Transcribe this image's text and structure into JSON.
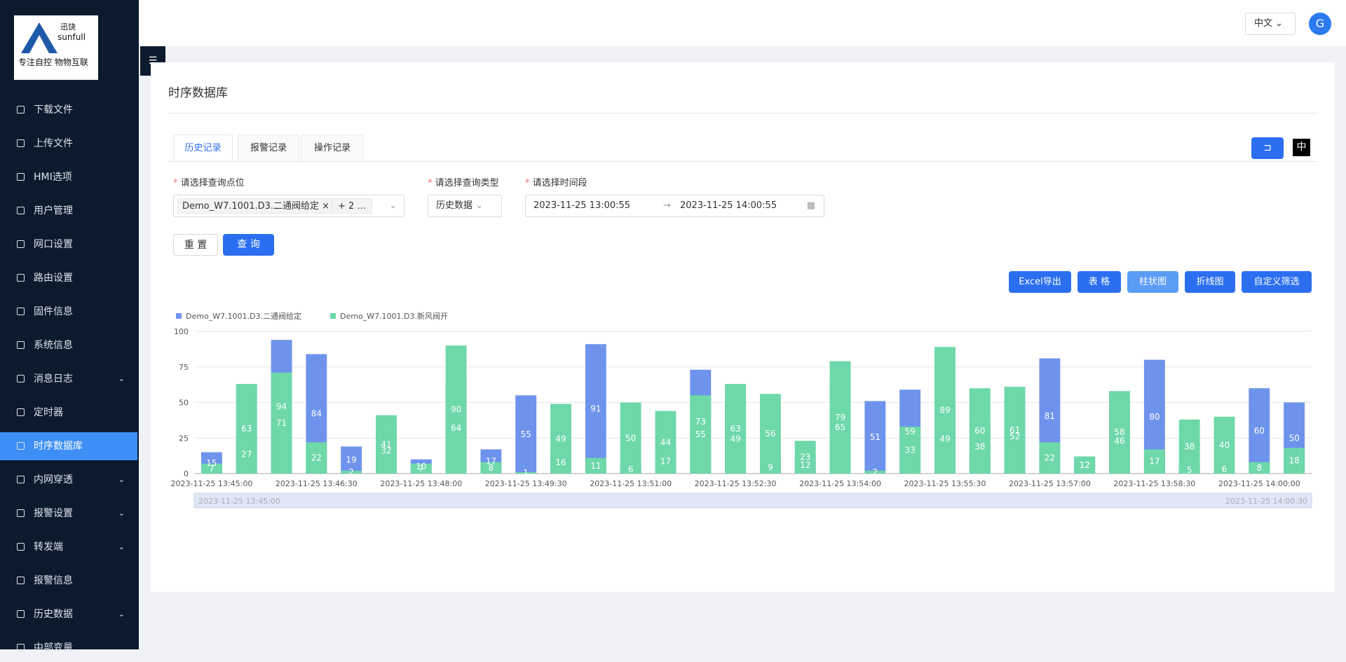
{
  "logo": {
    "brand_cn": "迅饶",
    "brand_en": "sunfull",
    "slogan": "专注自控 物物互联"
  },
  "sidebar": {
    "items": [
      {
        "label": "下载文件"
      },
      {
        "label": "上传文件"
      },
      {
        "label": "HMI选项"
      },
      {
        "label": "用户管理"
      },
      {
        "label": "网口设置"
      },
      {
        "label": "路由设置"
      },
      {
        "label": "固件信息"
      },
      {
        "label": "系统信息"
      },
      {
        "label": "消息日志",
        "expandable": true
      },
      {
        "label": "定时器"
      },
      {
        "label": "时序数据库",
        "active": true
      },
      {
        "label": "内网穿透",
        "expandable": true
      },
      {
        "label": "报警设置",
        "expandable": true
      },
      {
        "label": "转发端",
        "expandable": true
      },
      {
        "label": "报警信息"
      },
      {
        "label": "历史数据",
        "expandable": true
      },
      {
        "label": "中部变量"
      }
    ]
  },
  "header": {
    "language": "中文"
  },
  "page": {
    "title": "时序数据库",
    "tabs": [
      {
        "label": "历史记录",
        "active": true
      },
      {
        "label": "报警记录"
      },
      {
        "label": "操作记录"
      }
    ],
    "lang_icon": "中",
    "form": {
      "point_label": "请选择查询点位",
      "type_label": "请选择查询类型",
      "time_label": "请选择时间段",
      "point_tag": "Demo_W7.1001.D3.二通阀给定",
      "point_more": "+ 2 ...",
      "query_type": "历史数据",
      "start": "2023-11-25 13:00:55",
      "end": "2023-11-25 14:00:55"
    },
    "buttons": {
      "reset": "重 置",
      "query": "查 询"
    },
    "chart_buttons": [
      {
        "label": "Excel导出"
      },
      {
        "label": "表 格"
      },
      {
        "label": "柱状图",
        "active": true
      },
      {
        "label": "折线图"
      },
      {
        "label": "自定义筛选"
      }
    ]
  },
  "chart_data": {
    "type": "bar",
    "overlap": true,
    "categories": [
      "2023-11-25 13:45:00",
      null,
      null,
      "2023-11-25 13:46:30",
      null,
      null,
      "2023-11-25 13:48:00",
      null,
      null,
      "2023-11-25 13:49:30",
      null,
      null,
      "2023-11-25 13:51:00",
      null,
      null,
      "2023-11-25 13:52:30",
      null,
      null,
      "2023-11-25 13:54:00",
      null,
      null,
      "2023-11-25 13:55:30",
      null,
      null,
      "2023-11-25 13:57:00",
      null,
      null,
      "2023-11-25 13:58:30",
      null,
      null,
      "2023-11-25 14:00:00",
      null
    ],
    "series": [
      {
        "name": "Demo_W7.1001.D3.二通阀给定",
        "color": "#6e93ec",
        "values": [
          15,
          27,
          94,
          84,
          19,
          32,
          10,
          64,
          17,
          55,
          16,
          91,
          6,
          17,
          73,
          49,
          9,
          12,
          65,
          51,
          59,
          49,
          38,
          52,
          81,
          12,
          46,
          80,
          5,
          6,
          60,
          50
        ]
      },
      {
        "name": "Demo_W7.1001.D3.新风阀开",
        "color": "#6ed8a8",
        "values": [
          7,
          63,
          71,
          22,
          2,
          41,
          7,
          90,
          8,
          1,
          49,
          11,
          50,
          44,
          55,
          63,
          56,
          23,
          79,
          2,
          33,
          89,
          60,
          61,
          22,
          12,
          58,
          17,
          38,
          40,
          8,
          18
        ]
      }
    ],
    "ylim": [
      0,
      100
    ],
    "yticks": [
      0,
      25,
      50,
      75,
      100
    ],
    "grid": true,
    "zoom_start": "2023-11-25 13:45:00",
    "zoom_end": "2023-11-25 14:00:30"
  }
}
